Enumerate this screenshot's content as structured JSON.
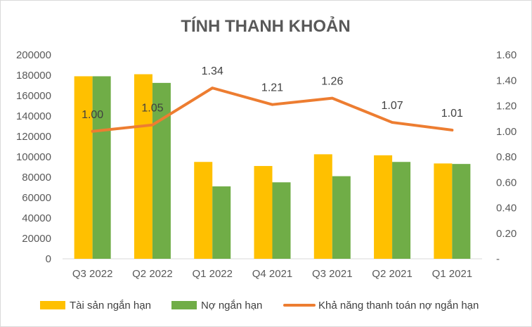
{
  "chart_data": {
    "type": "bar",
    "title": "TÍNH THANH KHOẢN",
    "categories": [
      "Q3 2022",
      "Q2 2022",
      "Q1 2022",
      "Q4 2021",
      "Q3 2021",
      "Q2 2021",
      "Q1 2021"
    ],
    "series": [
      {
        "name": "Tài sản ngắn hạn",
        "type": "bar",
        "axis": "left",
        "color": "#FFC000",
        "values": [
          179000,
          181000,
          95000,
          91000,
          102500,
          101500,
          93500
        ]
      },
      {
        "name": "Nợ ngắn hạn",
        "type": "bar",
        "axis": "left",
        "color": "#70AD47",
        "values": [
          179000,
          172500,
          71000,
          75000,
          81000,
          95000,
          93000
        ]
      },
      {
        "name": "Khả năng thanh toán nợ ngắn hạn",
        "type": "line",
        "axis": "right",
        "color": "#ED7D31",
        "values": [
          1.0,
          1.05,
          1.34,
          1.21,
          1.26,
          1.07,
          1.01
        ],
        "labels": [
          "1.00",
          "1.05",
          "1.34",
          "1.21",
          "1.26",
          "1.07",
          "1.01"
        ]
      }
    ],
    "y_left": {
      "min": 0,
      "max": 200000,
      "ticks": [
        "0",
        "20000",
        "40000",
        "60000",
        "80000",
        "100000",
        "120000",
        "140000",
        "160000",
        "180000",
        "200000"
      ]
    },
    "y_right": {
      "min": 0,
      "max": 1.6,
      "ticks": [
        "-",
        "0.20",
        "0.40",
        "0.60",
        "0.80",
        "1.00",
        "1.20",
        "1.40",
        "1.60"
      ]
    },
    "grid": false,
    "legend": "bottom"
  }
}
